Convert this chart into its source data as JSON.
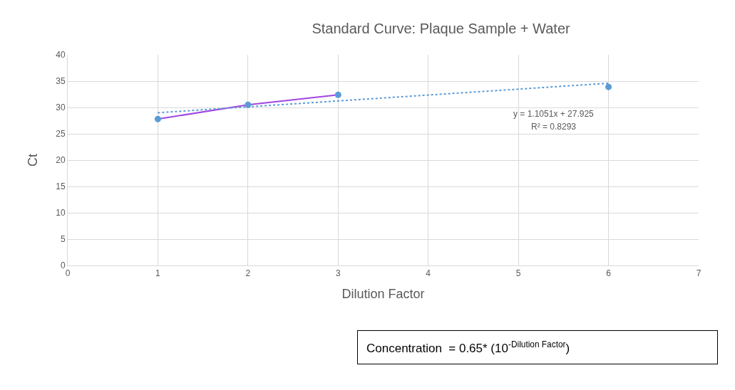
{
  "chart_data": {
    "type": "scatter",
    "title": "Standard Curve: Plaque Sample + Water",
    "xlabel": "Dilution Factor",
    "ylabel": "Ct",
    "xlim": [
      0,
      7
    ],
    "xticks": [
      0,
      1,
      2,
      3,
      4,
      5,
      6,
      7
    ],
    "ylim": [
      0,
      40
    ],
    "yticks": [
      0,
      5,
      10,
      15,
      20,
      25,
      30,
      35,
      40
    ],
    "grid": true,
    "series": [
      {
        "type": "line",
        "color": "#a046e0",
        "x": [
          1,
          2,
          3
        ],
        "values": [
          27.8,
          30.5,
          32.4
        ],
        "marker": "none",
        "line_style": "solid"
      },
      {
        "type": "line",
        "color": "#5b9bd5",
        "x": [
          1,
          6
        ],
        "values": [
          29.0,
          34.6
        ],
        "marker": "none",
        "line_style": "dotted"
      },
      {
        "color": "#5b9bd5",
        "x": [
          1,
          2,
          3,
          6
        ],
        "values": [
          27.8,
          30.5,
          32.4,
          33.9
        ],
        "marker": "circle"
      }
    ],
    "annotations": [
      "y = 1.1051x + 27.925",
      "R² = 0.8293",
      "Concentration  = 0.65* (10$^{-Dilution Factor}$)"
    ]
  }
}
